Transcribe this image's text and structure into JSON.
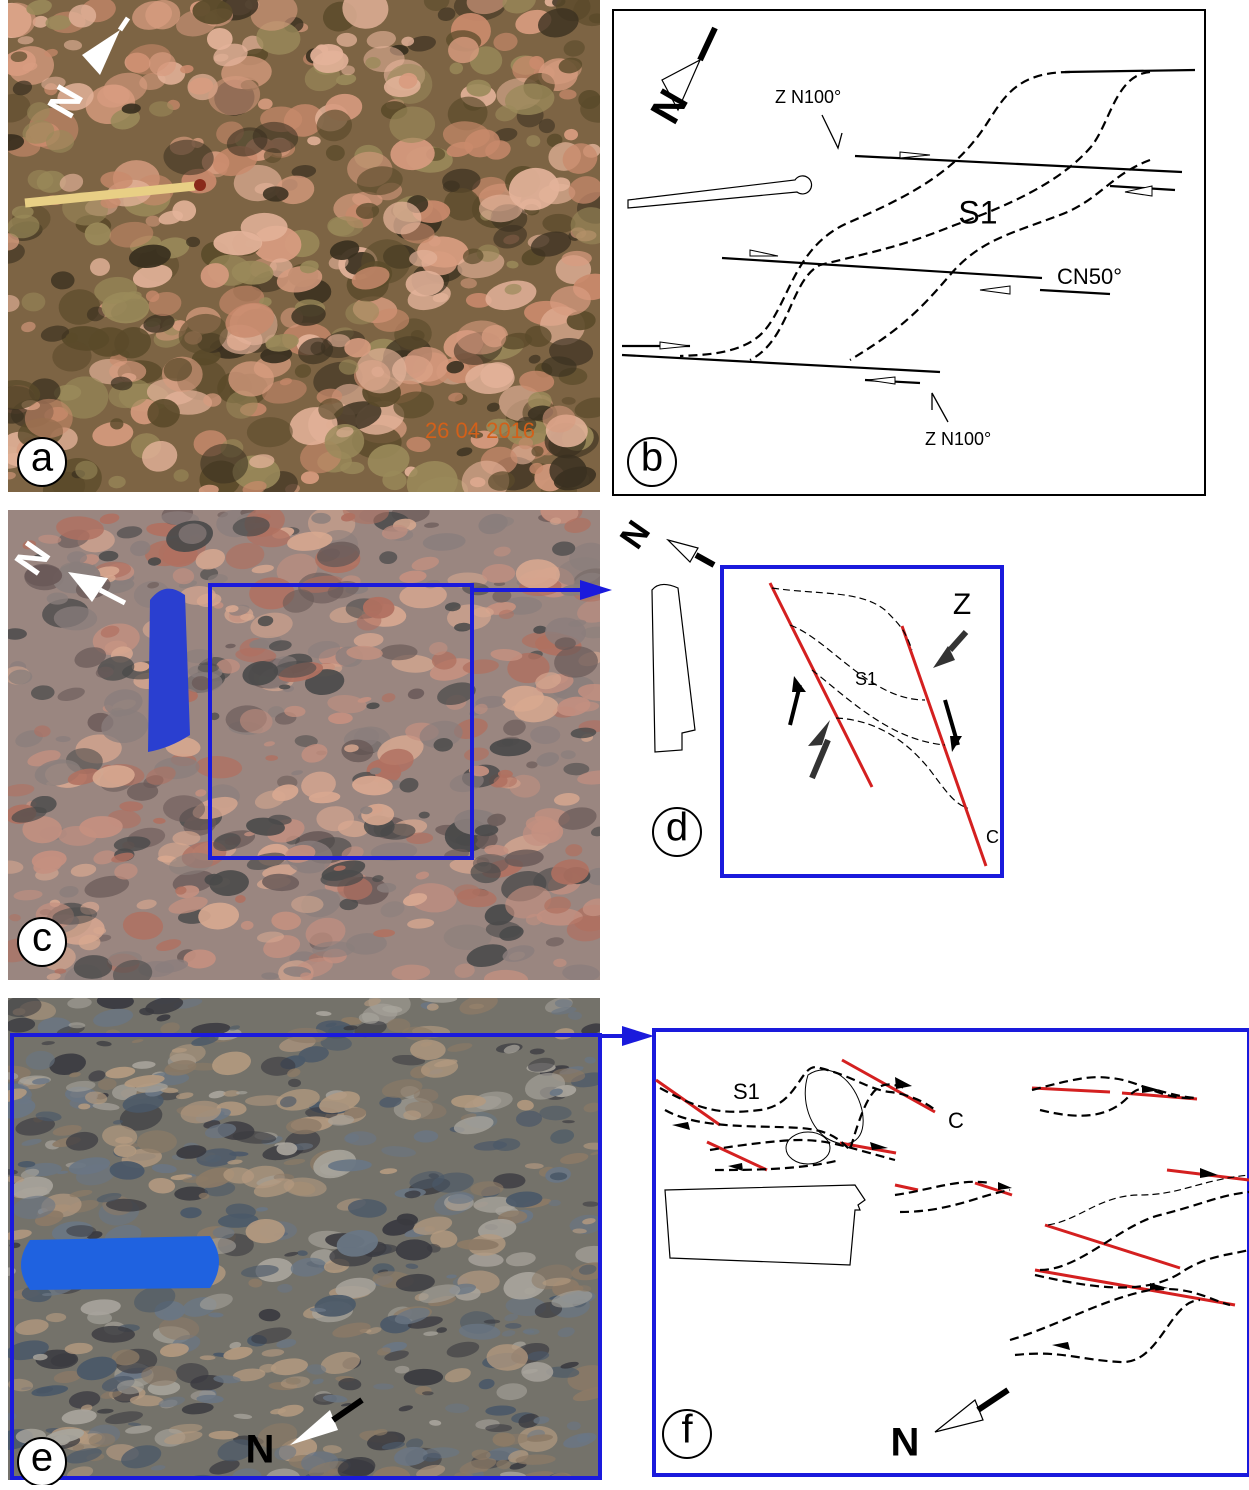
{
  "panels": {
    "a": {
      "label": "a",
      "north": "N",
      "date": "26 04 2016"
    },
    "b": {
      "label": "b",
      "north": "N",
      "annotations": [
        "Z N100°",
        "S1",
        "CN50°",
        "Z N100°"
      ]
    },
    "c": {
      "label": "c",
      "north": "N"
    },
    "d": {
      "label": "d",
      "north": "N",
      "annotations": [
        "Z",
        "S1",
        "C"
      ]
    },
    "e": {
      "label": "e",
      "north": "N"
    },
    "f": {
      "label": "f",
      "north": "N",
      "annotations": [
        "S1",
        "C"
      ]
    }
  }
}
